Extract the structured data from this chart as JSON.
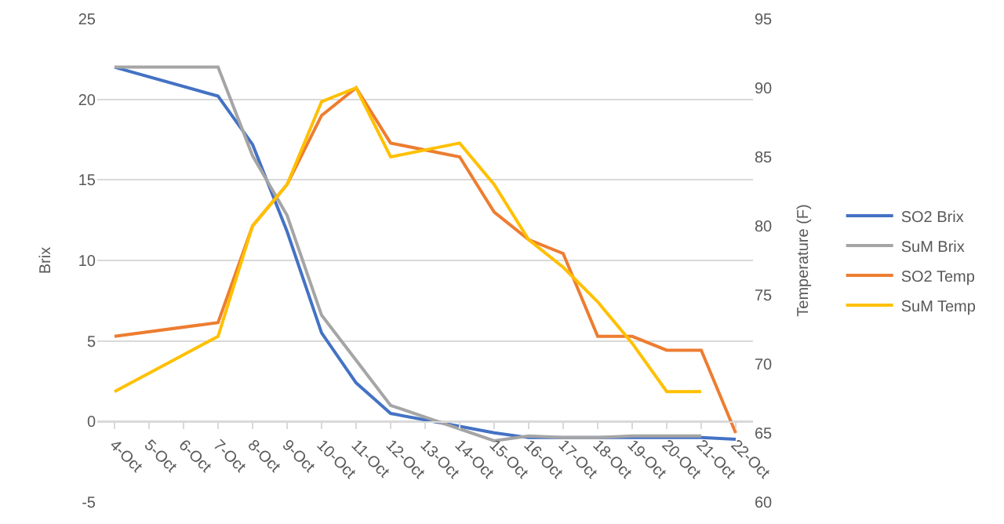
{
  "chart_data": {
    "type": "line",
    "ylabel": "Brix",
    "y2label": "Temperature (F)",
    "categories": [
      "4-Oct",
      "5-Oct",
      "6-Oct",
      "7-Oct",
      "8-Oct",
      "9-Oct",
      "10-Oct",
      "11-Oct",
      "12-Oct",
      "13-Oct",
      "14-Oct",
      "15-Oct",
      "16-Oct",
      "17-Oct",
      "18-Oct",
      "19-Oct",
      "20-Oct",
      "21-Oct",
      "22-Oct"
    ],
    "series": [
      {
        "name": "SO2 Brix",
        "color": "#4472c4",
        "values": [
          22,
          null,
          null,
          20.2,
          17.2,
          11.8,
          5.5,
          2.4,
          0.5,
          null,
          -0.3,
          -0.7,
          -1,
          -1,
          -1,
          -1,
          -1,
          -1,
          -1.1
        ]
      },
      {
        "name": "SuM Brix",
        "color": "#a5a5a5",
        "values": [
          22,
          null,
          null,
          22,
          16.5,
          12.8,
          6.6,
          3.8,
          1,
          null,
          null,
          -1.2,
          -0.9,
          -1,
          -1,
          -0.9,
          -0.9,
          -0.9,
          null
        ]
      },
      {
        "name": "SO2 Temp",
        "color": "#ed7d31",
        "axis": "y2",
        "values": [
          72,
          null,
          null,
          73,
          80,
          83,
          88,
          90,
          86,
          null,
          85,
          81,
          79,
          78,
          72,
          72,
          71,
          71,
          65
        ]
      },
      {
        "name": "SuM Temp",
        "color": "#ffc000",
        "axis": "y2",
        "values": [
          68,
          null,
          null,
          72,
          80,
          83,
          89,
          90,
          85,
          null,
          86,
          83,
          79,
          77,
          74.5,
          71.5,
          68,
          68,
          null
        ]
      }
    ],
    "ylim": [
      -5,
      25
    ],
    "yticks": [
      -5,
      0,
      5,
      10,
      15,
      20,
      25
    ],
    "y2lim": [
      60,
      95
    ],
    "y2ticks": [
      60,
      65,
      70,
      75,
      80,
      85,
      90,
      95
    ],
    "grid": "y",
    "legend": "right",
    "marker": "none",
    "line_style": "solid"
  }
}
